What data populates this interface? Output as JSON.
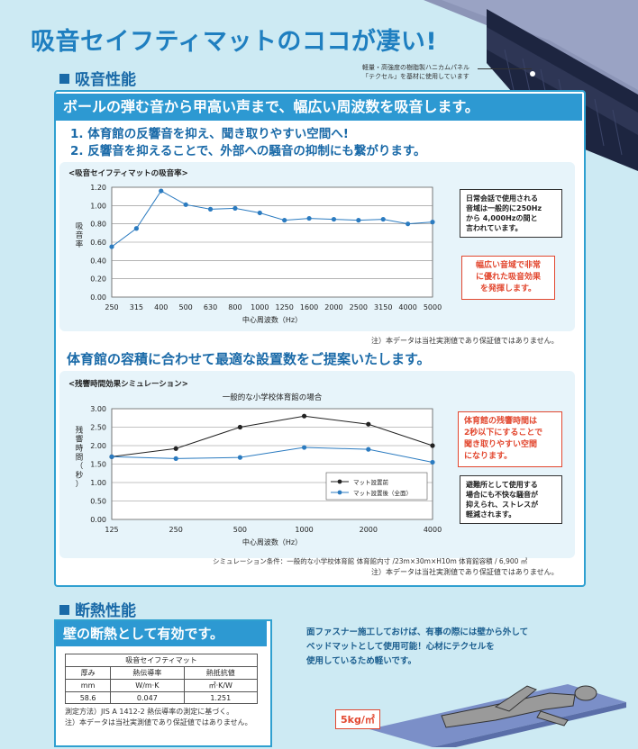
{
  "page_title": "吸音セイフティマットのココが凄い!",
  "section1": {
    "heading": "吸音性能",
    "mat_note_line1": "軽量・高強度の樹脂製ハニカムパネル",
    "mat_note_line2": "「テクセル」を基材に使用しています",
    "banner": "ボールの弾む音から甲高い声まで、幅広い周波数を吸音します。",
    "point1": "1. 体育館の反響音を抑え、聞き取りやすい空間へ!",
    "point2": "2. 反響音を抑えることで、外部への騒音の抑制にも繋がります。",
    "chart1_caption": "<吸音セイフティマットの吸音率>",
    "chart1_note": "注）本データは当社実測値であり保証値ではありません。",
    "callout1": [
      "日常会話で使用される",
      "音域は一般的に250Hz",
      "から 4,000Hzの間と",
      "言われています。"
    ],
    "callout2": [
      "幅広い音域で非常",
      "に優れた吸音効果",
      "を発揮します。"
    ],
    "subheading2": "体育館の容積に合わせて最適な設置数をご提案いたします。",
    "chart2_caption": "<残響時間効果シミュレーション>",
    "callout3": [
      "体育館の残響時間は",
      "2秒以下にすることで",
      "聞き取りやすい空間",
      "になります。"
    ],
    "callout4": [
      "避難所として使用する",
      "場合にも不快な騒音が",
      "抑えられ、ストレスが",
      "軽減されます。"
    ],
    "sim_condition": "シミュレーション条件：一般的な小学校体育館 体育館内寸 /23m×30m×H10m 体育館容積 / 6,900 ㎥",
    "chart2_note": "注）本データは当社実測値であり保証値ではありません。"
  },
  "section2": {
    "heading": "断熱性能",
    "banner": "壁の断熱として有効です。",
    "table_title": "吸音セイフティマット",
    "table_headers": [
      "厚み",
      "熱伝導率",
      "熱抵抗値"
    ],
    "table_units": [
      "mm",
      "W/m·K",
      "㎡·K/W"
    ],
    "table_values": [
      "58.6",
      "0.047",
      "1.251"
    ],
    "note1": "測定方法）JIS A 1412-2 熱伝導率の測定に基づく。",
    "note2": "注）本データは当社実測値であり保証値ではありません。",
    "right_text": [
      "面ファスナー施工しておけば、有事の際には壁から外して",
      "ベッドマットとして使用可能！心材にテクセルを",
      "使用しているため軽いです。"
    ],
    "weight_label": "5kg/㎡"
  },
  "chart_data": [
    {
      "type": "line",
      "title": "",
      "xlabel": "中心周波数（Hz）",
      "ylabel": "吸音率",
      "categories": [
        "250",
        "315",
        "400",
        "500",
        "630",
        "800",
        "1000",
        "1250",
        "1600",
        "2000",
        "2500",
        "3150",
        "4000",
        "5000"
      ],
      "series": [
        {
          "values": [
            0.55,
            0.75,
            1.16,
            1.01,
            0.96,
            0.97,
            0.92,
            0.84,
            0.86,
            0.85,
            0.84,
            0.85,
            0.8,
            0.82
          ]
        }
      ],
      "ylim": [
        0,
        1.2
      ],
      "yticks": [
        "0.00",
        "0.20",
        "0.40",
        "0.60",
        "0.80",
        "1.00",
        "1.20"
      ],
      "grid": true,
      "color": "#2b7bc0"
    },
    {
      "type": "line",
      "title": "一般的な小学校体育館の場合",
      "xlabel": "中心周波数（Hz）",
      "ylabel": "残響時間（秒）",
      "categories": [
        "125",
        "250",
        "500",
        "1000",
        "2000",
        "4000"
      ],
      "series": [
        {
          "name": "マット設置前",
          "color": "#222222",
          "values": [
            1.7,
            1.92,
            2.5,
            2.8,
            2.58,
            2.0
          ]
        },
        {
          "name": "マット設置後（全面）",
          "color": "#2b7bc0",
          "values": [
            1.7,
            1.65,
            1.68,
            1.95,
            1.9,
            1.55
          ]
        }
      ],
      "ylim": [
        0,
        3
      ],
      "yticks": [
        "0.00",
        "0.50",
        "1.00",
        "1.50",
        "2.00",
        "2.50",
        "3.00"
      ],
      "legend": "bottom-right",
      "grid": true
    }
  ]
}
